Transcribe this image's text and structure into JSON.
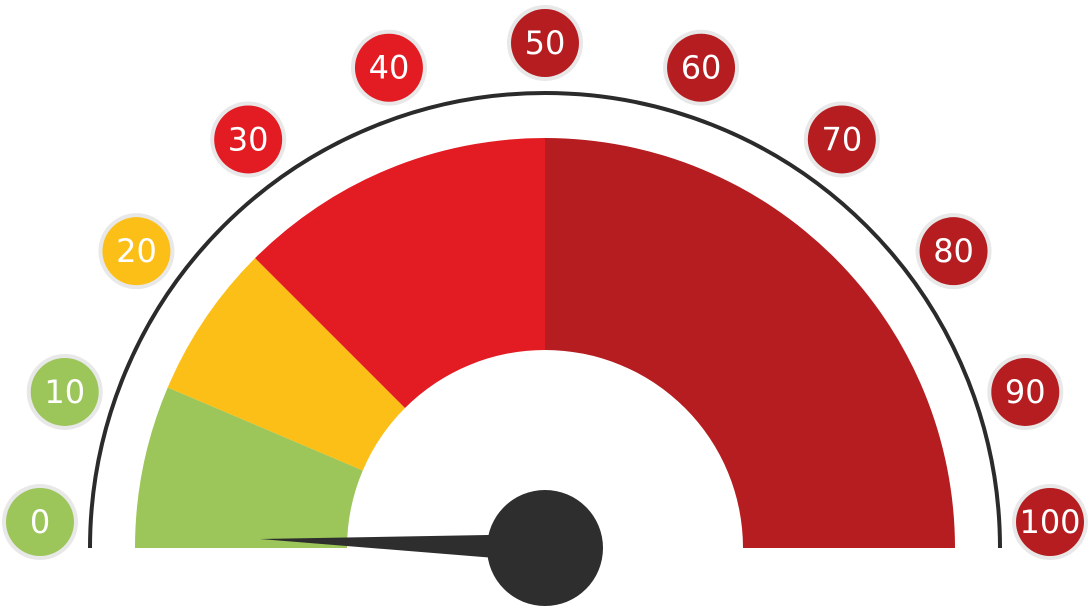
{
  "gauge": {
    "min": 0,
    "max": 100,
    "needle_value": 1,
    "ticks": [
      {
        "label": "0",
        "color": "#9cc65a"
      },
      {
        "label": "10",
        "color": "#9cc65a"
      },
      {
        "label": "20",
        "color": "#fbbf18"
      },
      {
        "label": "30",
        "color": "#e31b23"
      },
      {
        "label": "40",
        "color": "#e31b23"
      },
      {
        "label": "50",
        "color": "#b51d20"
      },
      {
        "label": "60",
        "color": "#b51d20"
      },
      {
        "label": "70",
        "color": "#b51d20"
      },
      {
        "label": "80",
        "color": "#b51d20"
      },
      {
        "label": "90",
        "color": "#b51d20"
      },
      {
        "label": "100",
        "color": "#b51d20"
      }
    ],
    "zones": [
      {
        "name": "green",
        "from": 0,
        "to": 12.8,
        "color": "#9cc65a"
      },
      {
        "name": "yellow",
        "from": 12.8,
        "to": 25,
        "color": "#fbbf18"
      },
      {
        "name": "red",
        "from": 25,
        "to": 50,
        "color": "#e31b23"
      },
      {
        "name": "dark-red",
        "from": 50,
        "to": 100,
        "color": "#b51d20"
      }
    ],
    "tick_ring_color": "#e8e8e8",
    "outer_arc_color": "#2b2b2b",
    "needle_color": "#2e2e2e"
  }
}
